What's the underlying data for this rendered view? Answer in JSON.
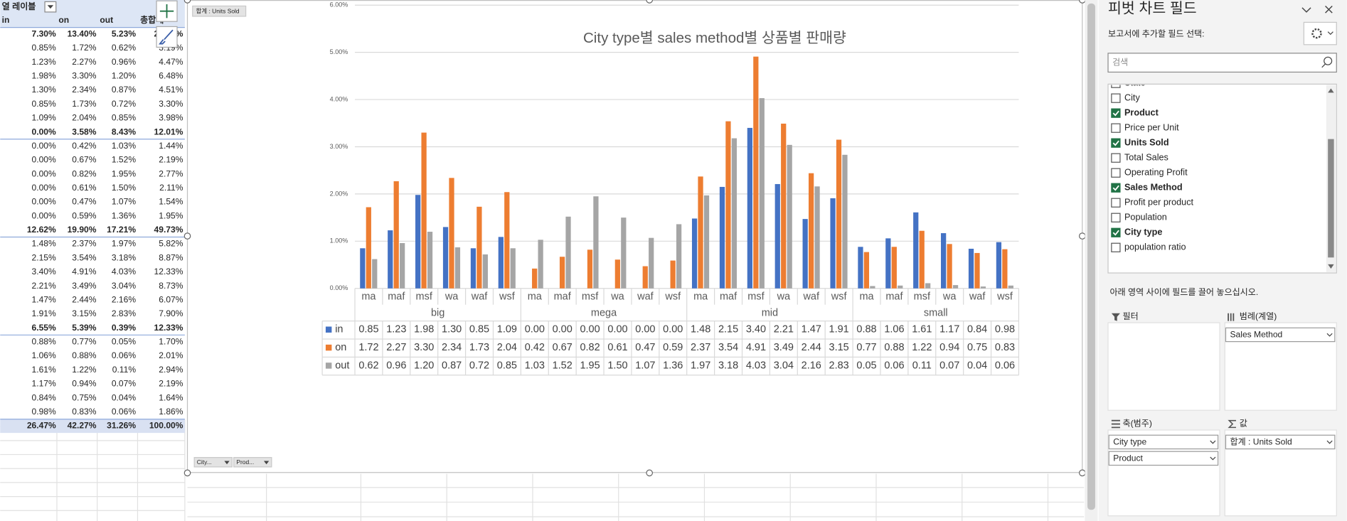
{
  "sheet": {
    "header": "열 레이블",
    "columns": [
      "in",
      "on",
      "out",
      "총합계"
    ],
    "rows": [
      [
        "7.30%",
        "13.40%",
        "5.23%",
        "25.93%"
      ],
      [
        "0.85%",
        "1.72%",
        "0.62%",
        "3.19%"
      ],
      [
        "1.23%",
        "2.27%",
        "0.96%",
        "4.47%"
      ],
      [
        "1.98%",
        "3.30%",
        "1.20%",
        "6.48%"
      ],
      [
        "1.30%",
        "2.34%",
        "0.87%",
        "4.51%"
      ],
      [
        "0.85%",
        "1.73%",
        "0.72%",
        "3.30%"
      ],
      [
        "1.09%",
        "2.04%",
        "0.85%",
        "3.98%"
      ],
      [
        "0.00%",
        "3.58%",
        "8.43%",
        "12.01%"
      ],
      [
        "0.00%",
        "0.42%",
        "1.03%",
        "1.44%"
      ],
      [
        "0.00%",
        "0.67%",
        "1.52%",
        "2.19%"
      ],
      [
        "0.00%",
        "0.82%",
        "1.95%",
        "2.77%"
      ],
      [
        "0.00%",
        "0.61%",
        "1.50%",
        "2.11%"
      ],
      [
        "0.00%",
        "0.47%",
        "1.07%",
        "1.54%"
      ],
      [
        "0.00%",
        "0.59%",
        "1.36%",
        "1.95%"
      ],
      [
        "12.62%",
        "19.90%",
        "17.21%",
        "49.73%"
      ],
      [
        "1.48%",
        "2.37%",
        "1.97%",
        "5.82%"
      ],
      [
        "2.15%",
        "3.54%",
        "3.18%",
        "8.87%"
      ],
      [
        "3.40%",
        "4.91%",
        "4.03%",
        "12.33%"
      ],
      [
        "2.21%",
        "3.49%",
        "3.04%",
        "8.73%"
      ],
      [
        "1.47%",
        "2.44%",
        "2.16%",
        "6.07%"
      ],
      [
        "1.91%",
        "3.15%",
        "2.83%",
        "7.90%"
      ],
      [
        "6.55%",
        "5.39%",
        "0.39%",
        "12.33%"
      ],
      [
        "0.88%",
        "0.77%",
        "0.05%",
        "1.70%"
      ],
      [
        "1.06%",
        "0.88%",
        "0.06%",
        "2.01%"
      ],
      [
        "1.61%",
        "1.22%",
        "0.11%",
        "2.94%"
      ],
      [
        "1.17%",
        "0.94%",
        "0.07%",
        "2.19%"
      ],
      [
        "0.84%",
        "0.75%",
        "0.04%",
        "1.64%"
      ],
      [
        "0.98%",
        "0.83%",
        "0.06%",
        "1.86%"
      ],
      [
        "26.47%",
        "42.27%",
        "31.26%",
        "100.00%"
      ]
    ]
  },
  "chart": {
    "type": "bar",
    "title": "City type별 sales method별 상품별 판매량",
    "groups": [
      "big",
      "mega",
      "mid",
      "small"
    ],
    "products": [
      "ma",
      "maf",
      "msf",
      "wa",
      "waf",
      "wsf"
    ],
    "ylim": [
      0,
      6
    ],
    "grid": true,
    "yticks": [
      {
        "value": 0,
        "label": "0.00%"
      },
      {
        "value": 1,
        "label": "1.00%"
      },
      {
        "value": 2,
        "label": "2.00%"
      },
      {
        "value": 3,
        "label": "3.00%"
      },
      {
        "value": 4,
        "label": "4.00%"
      },
      {
        "value": 5,
        "label": "5.00%"
      },
      {
        "value": 6,
        "label": "6.00%"
      }
    ],
    "series": [
      {
        "name": "in",
        "color": "#4472c4",
        "values": [
          0.85,
          1.23,
          1.98,
          1.3,
          0.85,
          1.09,
          0,
          0,
          0,
          0,
          0,
          0,
          1.48,
          2.15,
          3.4,
          2.21,
          1.47,
          1.91,
          0.88,
          1.06,
          1.61,
          1.17,
          0.84,
          0.98
        ],
        "value_labels": [
          "0.85",
          "1.23",
          "1.98",
          "1.30",
          "0.85",
          "1.09",
          "0.00",
          "0.00",
          "0.00",
          "0.00",
          "0.00",
          "0.00",
          "1.48",
          "2.15",
          "3.40",
          "2.21",
          "1.47",
          "1.91",
          "0.88",
          "1.06",
          "1.61",
          "1.17",
          "0.84",
          "0.98"
        ]
      },
      {
        "name": "on",
        "color": "#ed7d31",
        "values": [
          1.72,
          2.27,
          3.3,
          2.34,
          1.73,
          2.04,
          0.42,
          0.67,
          0.82,
          0.61,
          0.47,
          0.59,
          2.37,
          3.54,
          4.91,
          3.49,
          2.44,
          3.15,
          0.77,
          0.88,
          1.22,
          0.94,
          0.75,
          0.83
        ],
        "value_labels": [
          "1.72",
          "2.27",
          "3.30",
          "2.34",
          "1.73",
          "2.04",
          "0.42",
          "0.67",
          "0.82",
          "0.61",
          "0.47",
          "0.59",
          "2.37",
          "3.54",
          "4.91",
          "3.49",
          "2.44",
          "3.15",
          "0.77",
          "0.88",
          "1.22",
          "0.94",
          "0.75",
          "0.83"
        ]
      },
      {
        "name": "out",
        "color": "#a5a5a5",
        "values": [
          0.62,
          0.96,
          1.2,
          0.87,
          0.72,
          0.85,
          1.03,
          1.52,
          1.95,
          1.5,
          1.07,
          1.36,
          1.97,
          3.18,
          4.03,
          3.04,
          2.16,
          2.83,
          0.05,
          0.06,
          0.11,
          0.07,
          0.04,
          0.06
        ],
        "value_labels": [
          "0.62",
          "0.96",
          "1.20",
          "0.87",
          "0.72",
          "0.85",
          "1.03",
          "1.52",
          "1.95",
          "1.50",
          "1.07",
          "1.36",
          "1.97",
          "3.18",
          "4.03",
          "3.04",
          "2.16",
          "2.83",
          "0.05",
          "0.06",
          "0.11",
          "0.07",
          "0.04",
          "0.06"
        ]
      }
    ],
    "axis_buttons": [
      "City...",
      "Prod..."
    ]
  },
  "panel": {
    "title": "피벗 차트 필드",
    "subtitle": "보고서에 추가할 필드 선택:",
    "search": "검색",
    "fields": [
      {
        "name": "State",
        "checked": false
      },
      {
        "name": "City",
        "checked": false
      },
      {
        "name": "Product",
        "checked": true
      },
      {
        "name": "Price per Unit",
        "checked": false
      },
      {
        "name": "Units Sold",
        "checked": true
      },
      {
        "name": "Total Sales",
        "checked": false
      },
      {
        "name": "Operating Profit",
        "checked": false
      },
      {
        "name": "Sales Method",
        "checked": true
      },
      {
        "name": "Profit per product",
        "checked": false
      },
      {
        "name": "Population",
        "checked": false
      },
      {
        "name": "City type",
        "checked": true
      },
      {
        "name": "population ratio",
        "checked": false
      }
    ],
    "hint": "아래 영역 사이에 필드를 끌어 놓으십시오.",
    "areas": {
      "filter": {
        "label": "필터"
      },
      "legend": {
        "label": "범례(계열)",
        "items": [
          "Sales Method"
        ]
      },
      "axis": {
        "label": "축(범주)",
        "items": [
          "City type",
          "Product"
        ]
      },
      "values": {
        "label": "값",
        "items": [
          "합계 : Units Sold"
        ]
      }
    }
  }
}
